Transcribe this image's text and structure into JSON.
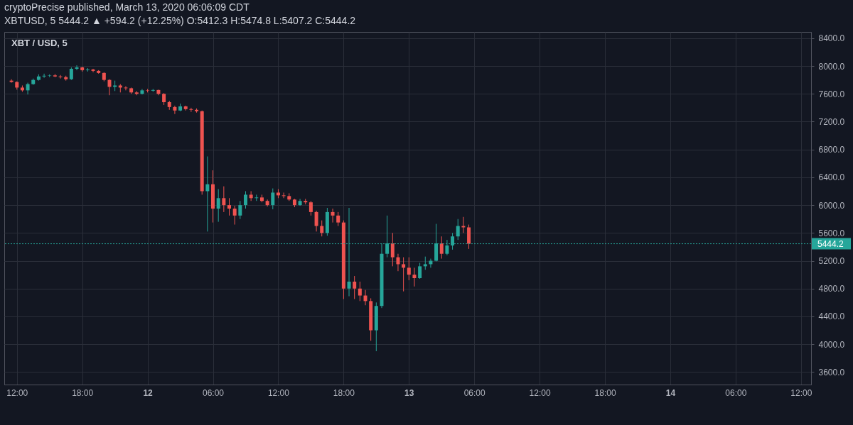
{
  "chart_data": {
    "type": "candlestick",
    "title": "cryptoPrecise published, March 13, 2020 06:06:09 CDT",
    "subtitle": "XBTUSD, 5  5444.2 ▲ +594.2 (+12.25%) O:5412.3 H:5474.8 L:5407.2 C:5444.2",
    "annotations": [
      "XBT / USD, 5"
    ],
    "x": [
      "2020-03-11T11:30",
      "2020-03-11T12:00",
      "2020-03-11T12:30",
      "2020-03-11T13:00",
      "2020-03-11T13:30",
      "2020-03-11T14:00",
      "2020-03-11T14:30",
      "2020-03-11T15:00",
      "2020-03-11T15:30",
      "2020-03-11T16:00",
      "2020-03-11T16:30",
      "2020-03-11T17:00",
      "2020-03-11T17:30",
      "2020-03-11T18:00",
      "2020-03-11T18:30",
      "2020-03-11T19:00",
      "2020-03-11T19:30",
      "2020-03-11T20:00",
      "2020-03-11T20:30",
      "2020-03-11T21:00",
      "2020-03-11T21:30",
      "2020-03-11T22:00",
      "2020-03-11T22:30",
      "2020-03-11T23:00",
      "2020-03-11T23:30",
      "2020-03-12T00:00",
      "2020-03-12T00:30",
      "2020-03-12T01:00",
      "2020-03-12T01:30",
      "2020-03-12T02:00",
      "2020-03-12T02:30",
      "2020-03-12T03:00",
      "2020-03-12T03:30",
      "2020-03-12T04:00",
      "2020-03-12T04:30",
      "2020-03-12T05:00",
      "2020-03-12T05:30",
      "2020-03-12T06:00",
      "2020-03-12T06:30",
      "2020-03-12T07:00",
      "2020-03-12T07:30",
      "2020-03-12T08:00",
      "2020-03-12T08:30",
      "2020-03-12T09:00",
      "2020-03-12T09:30",
      "2020-03-12T10:00",
      "2020-03-12T10:30",
      "2020-03-12T11:00",
      "2020-03-12T11:30",
      "2020-03-12T12:00",
      "2020-03-12T12:30",
      "2020-03-12T13:00",
      "2020-03-12T13:30",
      "2020-03-12T14:00",
      "2020-03-12T14:30",
      "2020-03-12T15:00",
      "2020-03-12T15:30",
      "2020-03-12T16:00",
      "2020-03-12T16:30",
      "2020-03-12T17:00",
      "2020-03-12T17:30",
      "2020-03-12T18:00",
      "2020-03-12T18:30",
      "2020-03-12T19:00",
      "2020-03-12T19:30",
      "2020-03-12T20:00",
      "2020-03-12T20:30",
      "2020-03-12T21:00",
      "2020-03-12T21:30",
      "2020-03-12T22:00",
      "2020-03-12T22:30",
      "2020-03-12T23:00",
      "2020-03-12T23:30",
      "2020-03-13T00:00",
      "2020-03-13T00:30",
      "2020-03-13T01:00",
      "2020-03-13T01:30",
      "2020-03-13T02:00",
      "2020-03-13T02:30",
      "2020-03-13T03:00",
      "2020-03-13T03:30",
      "2020-03-13T04:00",
      "2020-03-13T04:30",
      "2020-03-13T05:00",
      "2020-03-13T05:30"
    ],
    "ohlc": [
      [
        7790,
        7810,
        7760,
        7770
      ],
      [
        7770,
        7780,
        7660,
        7690
      ],
      [
        7690,
        7720,
        7630,
        7650
      ],
      [
        7650,
        7760,
        7590,
        7740
      ],
      [
        7740,
        7820,
        7730,
        7800
      ],
      [
        7800,
        7880,
        7790,
        7850
      ],
      [
        7850,
        7890,
        7830,
        7860
      ],
      [
        7860,
        7880,
        7840,
        7865
      ],
      [
        7865,
        7885,
        7840,
        7850
      ],
      [
        7850,
        7870,
        7820,
        7840
      ],
      [
        7840,
        7860,
        7790,
        7810
      ],
      [
        7810,
        7980,
        7800,
        7960
      ],
      [
        7960,
        8010,
        7940,
        7980
      ],
      [
        7980,
        7990,
        7920,
        7940
      ],
      [
        7940,
        7970,
        7920,
        7950
      ],
      [
        7950,
        7960,
        7910,
        7930
      ],
      [
        7930,
        7940,
        7890,
        7900
      ],
      [
        7900,
        7910,
        7780,
        7800
      ],
      [
        7800,
        7810,
        7580,
        7700
      ],
      [
        7700,
        7790,
        7640,
        7720
      ],
      [
        7720,
        7740,
        7620,
        7690
      ],
      [
        7690,
        7710,
        7650,
        7680
      ],
      [
        7680,
        7690,
        7600,
        7620
      ],
      [
        7620,
        7640,
        7580,
        7600
      ],
      [
        7600,
        7670,
        7590,
        7650
      ],
      [
        7650,
        7670,
        7620,
        7645
      ],
      [
        7645,
        7670,
        7630,
        7655
      ],
      [
        7655,
        7660,
        7580,
        7600
      ],
      [
        7600,
        7610,
        7440,
        7480
      ],
      [
        7480,
        7500,
        7370,
        7410
      ],
      [
        7410,
        7430,
        7310,
        7360
      ],
      [
        7360,
        7460,
        7350,
        7420
      ],
      [
        7420,
        7430,
        7360,
        7380
      ],
      [
        7380,
        7400,
        7340,
        7370
      ],
      [
        7370,
        7390,
        7330,
        7350
      ],
      [
        7350,
        7360,
        6150,
        6200
      ],
      [
        6200,
        6700,
        5620,
        6300
      ],
      [
        6300,
        6500,
        5750,
        5950
      ],
      [
        5950,
        6230,
        5760,
        6100
      ],
      [
        6100,
        6270,
        5900,
        6000
      ],
      [
        6000,
        6100,
        5850,
        5950
      ],
      [
        5950,
        5990,
        5720,
        5850
      ],
      [
        5850,
        6060,
        5800,
        6000
      ],
      [
        6000,
        6200,
        5950,
        6150
      ],
      [
        6150,
        6200,
        6060,
        6100
      ],
      [
        6100,
        6150,
        6060,
        6110
      ],
      [
        6110,
        6150,
        6040,
        6060
      ],
      [
        6060,
        6080,
        5980,
        6000
      ],
      [
        6000,
        6240,
        5940,
        6180
      ],
      [
        6180,
        6230,
        6100,
        6140
      ],
      [
        6140,
        6180,
        6100,
        6130
      ],
      [
        6130,
        6170,
        6060,
        6080
      ],
      [
        6080,
        6090,
        5970,
        6000
      ],
      [
        6000,
        6090,
        5990,
        6060
      ],
      [
        6060,
        6090,
        6010,
        6040
      ],
      [
        6040,
        6060,
        5850,
        5900
      ],
      [
        5900,
        5920,
        5620,
        5700
      ],
      [
        5700,
        5780,
        5550,
        5600
      ],
      [
        5600,
        5960,
        5560,
        5900
      ],
      [
        5900,
        5950,
        5750,
        5850
      ],
      [
        5850,
        5900,
        5700,
        5750
      ],
      [
        5750,
        5780,
        4650,
        4800
      ],
      [
        4800,
        5960,
        4690,
        4900
      ],
      [
        4900,
        4980,
        4650,
        4800
      ],
      [
        4800,
        4900,
        4620,
        4700
      ],
      [
        4700,
        4780,
        4560,
        4620
      ],
      [
        4620,
        4660,
        4050,
        4200
      ],
      [
        4200,
        4600,
        3900,
        4550
      ],
      [
        4550,
        5450,
        4520,
        5300
      ],
      [
        5300,
        5850,
        5250,
        5450
      ],
      [
        5450,
        5600,
        5120,
        5250
      ],
      [
        5250,
        5300,
        5050,
        5150
      ],
      [
        5150,
        5250,
        4760,
        5100
      ],
      [
        5100,
        5250,
        4920,
        5000
      ],
      [
        5000,
        5100,
        4830,
        4950
      ],
      [
        4950,
        5170,
        4940,
        5120
      ],
      [
        5120,
        5260,
        5070,
        5150
      ],
      [
        5150,
        5230,
        5100,
        5200
      ],
      [
        5200,
        5730,
        5190,
        5450
      ],
      [
        5450,
        5550,
        5230,
        5300
      ],
      [
        5300,
        5500,
        5280,
        5420
      ],
      [
        5420,
        5600,
        5360,
        5550
      ],
      [
        5550,
        5800,
        5500,
        5700
      ],
      [
        5700,
        5830,
        5600,
        5680
      ],
      [
        5680,
        5720,
        5370,
        5444.2
      ]
    ],
    "colors": [
      "#ef5350",
      "#ef5350",
      "#ef5350",
      "#26a69a",
      "#26a69a",
      "#26a69a",
      "#26a69a",
      "#26a69a",
      "#ef5350",
      "#ef5350",
      "#ef5350",
      "#26a69a",
      "#26a69a",
      "#ef5350",
      "#26a69a",
      "#ef5350",
      "#ef5350",
      "#ef5350",
      "#ef5350",
      "#26a69a",
      "#ef5350",
      "#ef5350",
      "#ef5350",
      "#ef5350",
      "#26a69a",
      "#ef5350",
      "#26a69a",
      "#ef5350",
      "#ef5350",
      "#ef5350",
      "#ef5350",
      "#26a69a",
      "#ef5350",
      "#ef5350",
      "#ef5350",
      "#ef5350",
      "#26a69a",
      "#ef5350",
      "#26a69a",
      "#ef5350",
      "#ef5350",
      "#ef5350",
      "#26a69a",
      "#26a69a",
      "#ef5350",
      "#26a69a",
      "#ef5350",
      "#ef5350",
      "#26a69a",
      "#ef5350",
      "#ef5350",
      "#ef5350",
      "#ef5350",
      "#26a69a",
      "#ef5350",
      "#ef5350",
      "#ef5350",
      "#ef5350",
      "#26a69a",
      "#ef5350",
      "#ef5350",
      "#ef5350",
      "#26a69a",
      "#ef5350",
      "#ef5350",
      "#ef5350",
      "#ef5350",
      "#26a69a",
      "#26a69a",
      "#26a69a",
      "#ef5350",
      "#ef5350",
      "#ef5350",
      "#ef5350",
      "#ef5350",
      "#26a69a",
      "#26a69a",
      "#26a69a",
      "#26a69a",
      "#ef5350",
      "#26a69a",
      "#26a69a",
      "#26a69a",
      "#ef5350",
      "#ef5350"
    ],
    "xlim": [
      "2020-03-11T11:10",
      "2020-03-14T12:36"
    ],
    "xticks": [
      {
        "value": "2020-03-11T12:00",
        "label": "12:00"
      },
      {
        "value": "2020-03-11T18:00",
        "label": "18:00"
      },
      {
        "value": "2020-03-12",
        "label": "12"
      },
      {
        "value": "2020-03-12T06:00",
        "label": "06:00"
      },
      {
        "value": "2020-03-12T12:00",
        "label": "12:00"
      },
      {
        "value": "2020-03-12T18:00",
        "label": "18:00"
      },
      {
        "value": "2020-03-13",
        "label": "13"
      },
      {
        "value": "2020-03-13T06:00",
        "label": "06:00"
      },
      {
        "value": "2020-03-13T12:00",
        "label": "12:00"
      },
      {
        "value": "2020-03-13T18:00",
        "label": "18:00"
      },
      {
        "value": "2020-03-14",
        "label": "14"
      },
      {
        "value": "2020-03-14T06:00",
        "label": "06:00"
      },
      {
        "value": "2020-03-14T12:00",
        "label": "12:00"
      }
    ],
    "ylim": [
      3420,
      8490
    ],
    "yticks": [
      {
        "value": 3600,
        "label": "3600.0"
      },
      {
        "value": 4000,
        "label": "4000.0"
      },
      {
        "value": 4400,
        "label": "4400.0"
      },
      {
        "value": 4800,
        "label": "4800.0"
      },
      {
        "value": 5200,
        "label": "5200.0"
      },
      {
        "value": 5600,
        "label": "5600.0"
      },
      {
        "value": 6000,
        "label": "6000.0"
      },
      {
        "value": 6400,
        "label": "6400.0"
      },
      {
        "value": 6800,
        "label": "6800.0"
      },
      {
        "value": 7200,
        "label": "7200.0"
      },
      {
        "value": 7600,
        "label": "7600.0"
      },
      {
        "value": 8000,
        "label": "8000.0"
      },
      {
        "value": 8400,
        "label": "8400.0"
      }
    ],
    "grid": true,
    "ref_lines": [
      {
        "axis": "y",
        "value": 5444.2,
        "label": "5444.2",
        "color": "#26a69a",
        "line_style": "dotted"
      }
    ]
  }
}
